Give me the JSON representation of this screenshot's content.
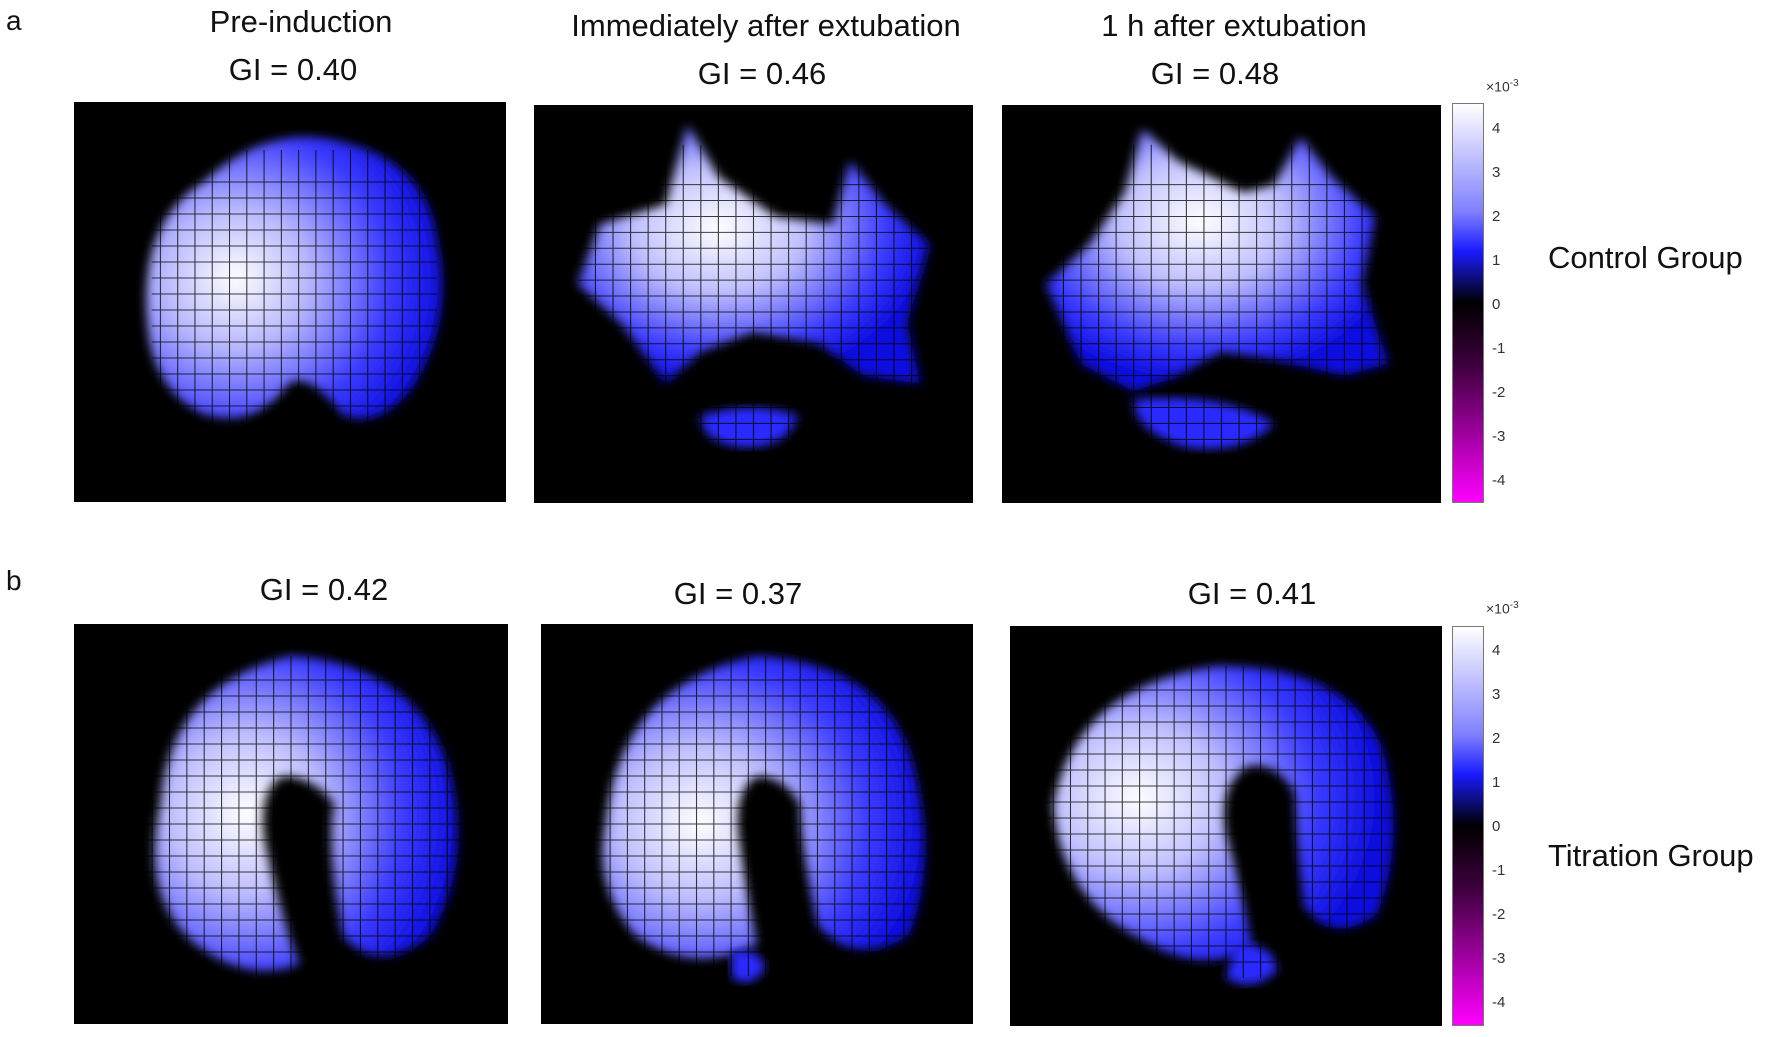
{
  "panels": {
    "a": {
      "letter": "a",
      "group_label": "Control Group",
      "columns": [
        {
          "title": "Pre-induction",
          "gi": "GI = 0.40"
        },
        {
          "title": "Immediately after extubation",
          "gi": "GI = 0.46"
        },
        {
          "title": "1 h after extubation",
          "gi": "GI = 0.48"
        }
      ]
    },
    "b": {
      "letter": "b",
      "group_label": "Titration Group",
      "columns": [
        {
          "title": "",
          "gi": "GI = 0.42"
        },
        {
          "title": "",
          "gi": "GI = 0.37"
        },
        {
          "title": "",
          "gi": "GI = 0.41"
        }
      ]
    }
  },
  "colorbar": {
    "exponent_base": "×10",
    "exponent_power": "-3",
    "ticks": [
      "4",
      "3",
      "2",
      "1",
      "0",
      "-1",
      "-2",
      "-3",
      "-4"
    ],
    "colors": {
      "max": "#ffffff",
      "mid_high": "#1a1aff",
      "zero": "#000000",
      "min": "#ff00ff"
    }
  },
  "image_colors": {
    "background": "#000000",
    "blue": "#1a1aff",
    "white": "#ffffff"
  }
}
